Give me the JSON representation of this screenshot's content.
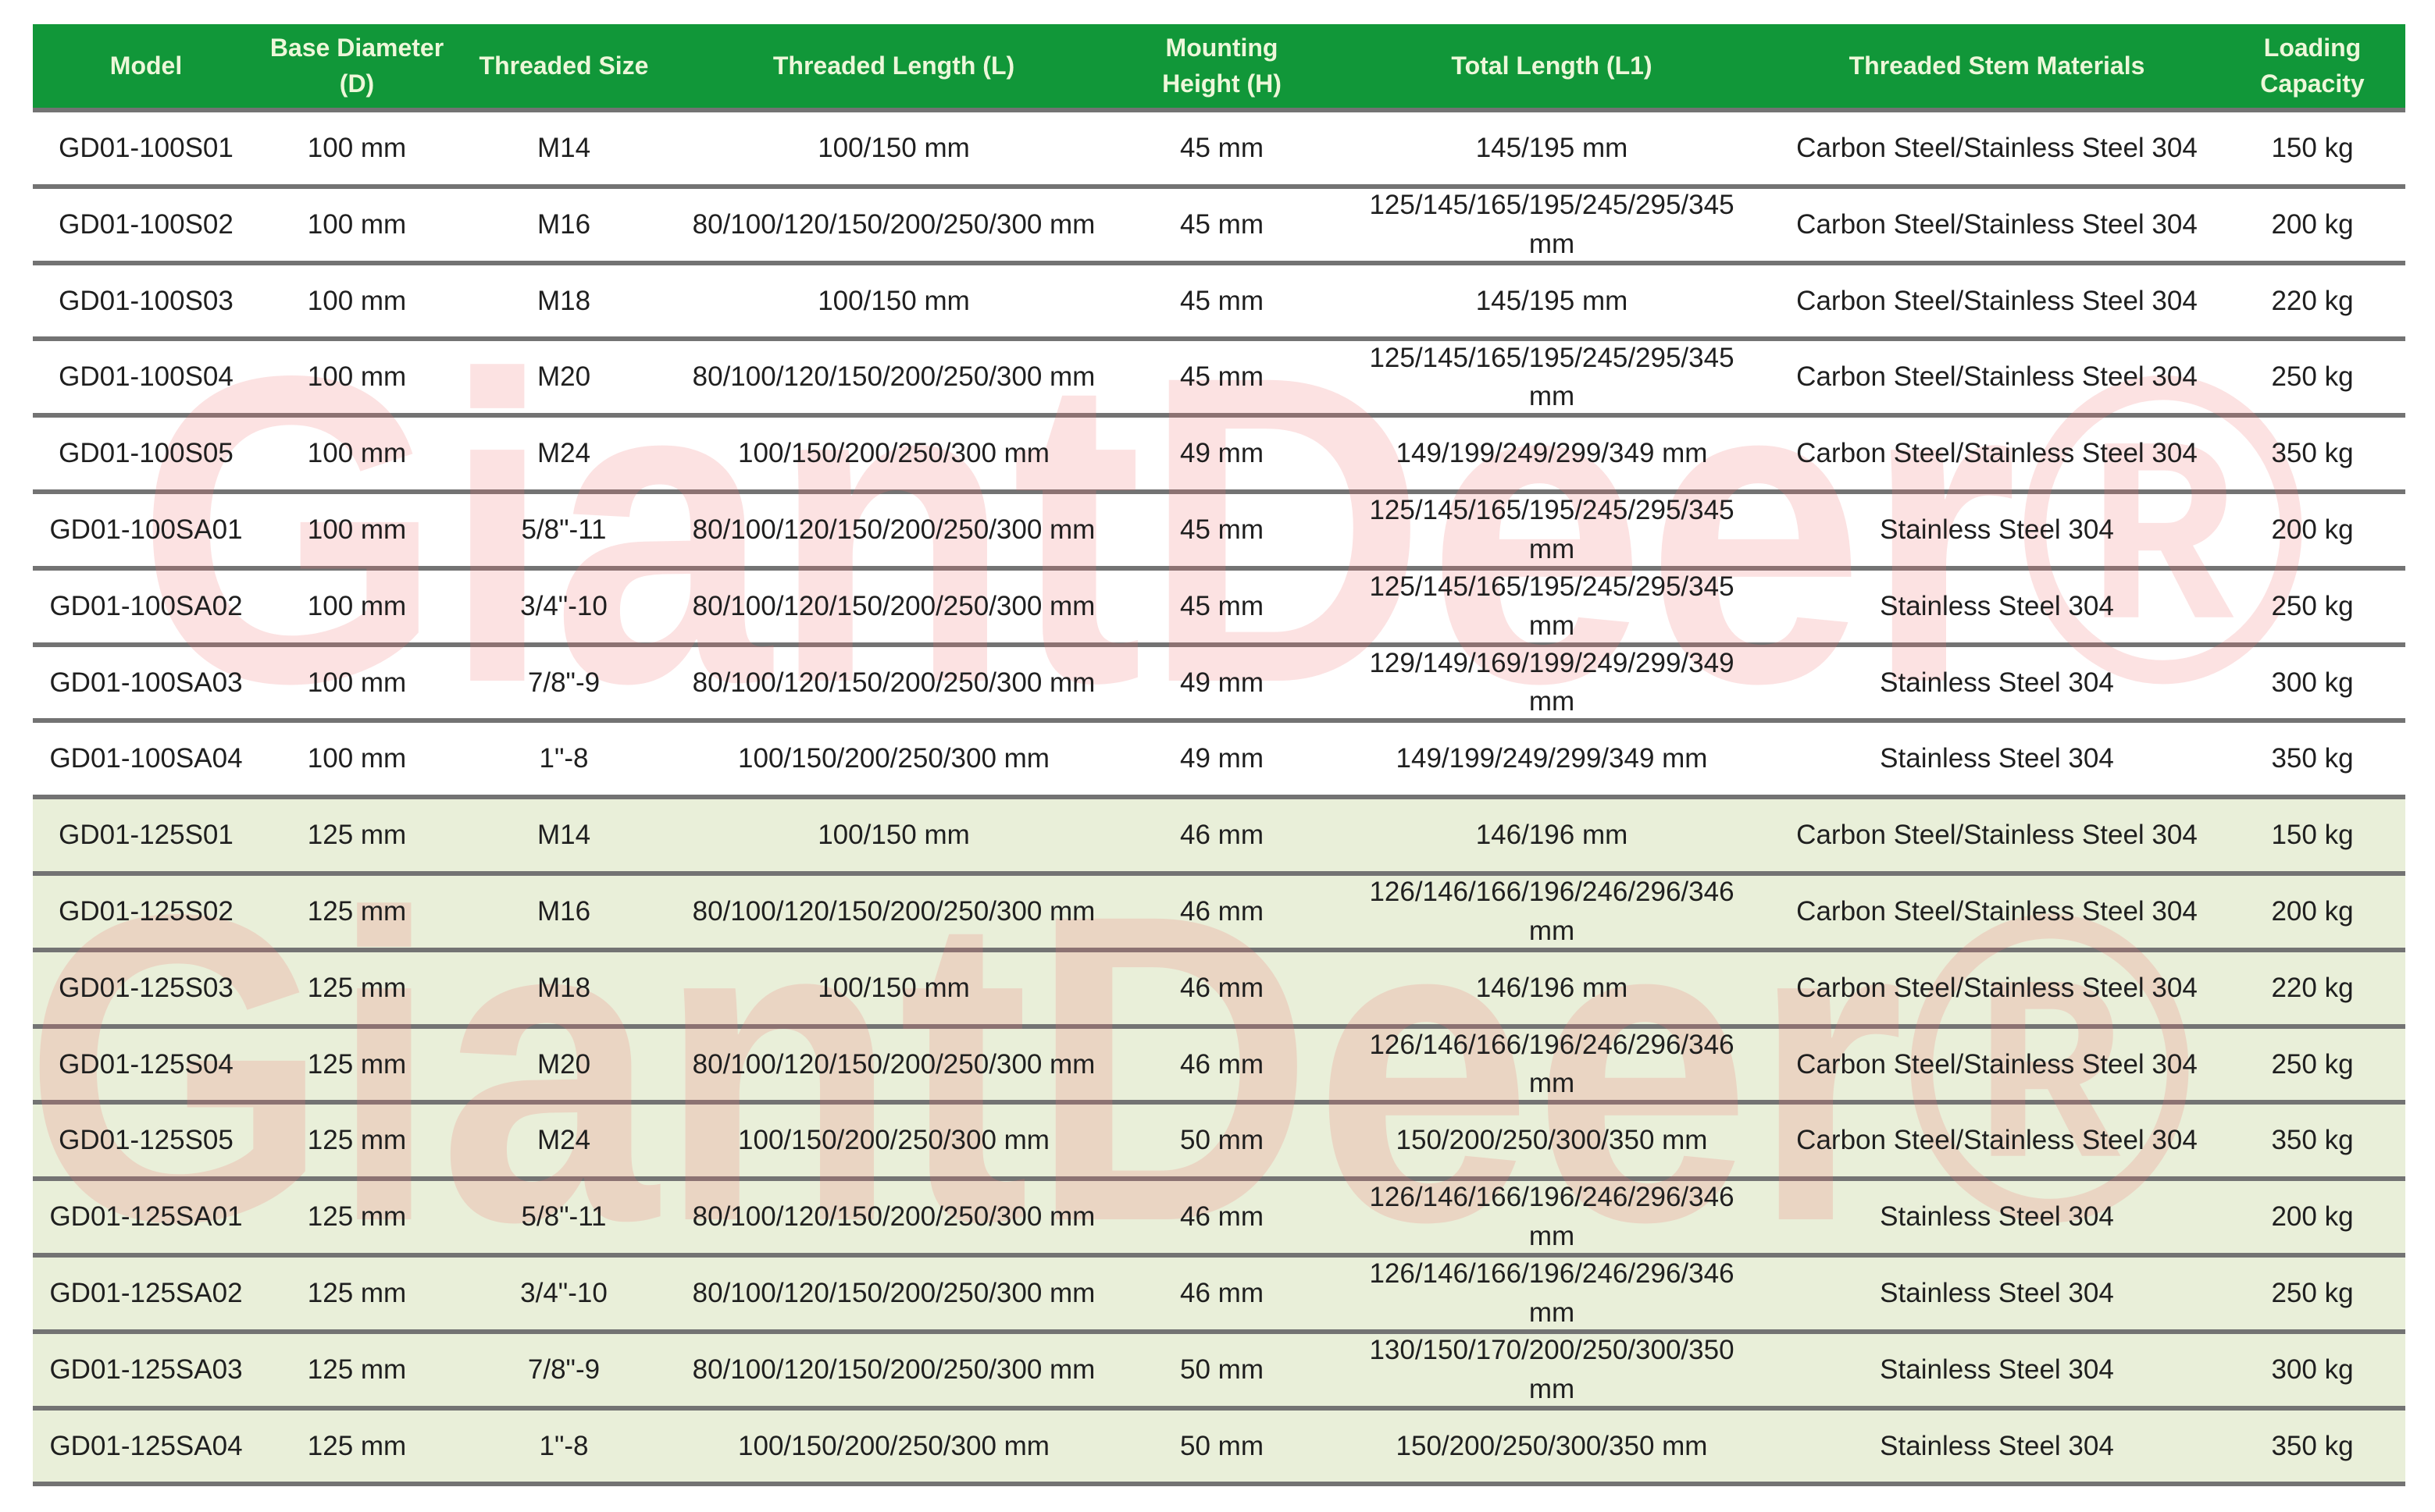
{
  "chart_data": {
    "type": "table",
    "columns": [
      "Model",
      "Base Diameter (D)",
      "Threaded Size",
      "Threaded Length (L)",
      "Mounting Height (H)",
      "Total Length (L1)",
      "Threaded Stem Materials",
      "Loading Capacity"
    ],
    "rows": [
      [
        "GD01-100S01",
        "100 mm",
        "M14",
        "100/150 mm",
        "45 mm",
        "145/195 mm",
        "Carbon Steel/Stainless Steel 304",
        "150 kg"
      ],
      [
        "GD01-100S02",
        "100 mm",
        "M16",
        "80/100/120/150/200/250/300 mm",
        "45 mm",
        "125/145/165/195/245/295/345 mm",
        "Carbon Steel/Stainless Steel 304",
        "200 kg"
      ],
      [
        "GD01-100S03",
        "100 mm",
        "M18",
        "100/150 mm",
        "45 mm",
        "145/195 mm",
        "Carbon Steel/Stainless Steel 304",
        "220 kg"
      ],
      [
        "GD01-100S04",
        "100 mm",
        "M20",
        "80/100/120/150/200/250/300 mm",
        "45 mm",
        "125/145/165/195/245/295/345 mm",
        "Carbon Steel/Stainless Steel 304",
        "250 kg"
      ],
      [
        "GD01-100S05",
        "100 mm",
        "M24",
        "100/150/200/250/300 mm",
        "49 mm",
        "149/199/249/299/349 mm",
        "Carbon Steel/Stainless Steel 304",
        "350 kg"
      ],
      [
        "GD01-100SA01",
        "100 mm",
        "5/8\"-11",
        "80/100/120/150/200/250/300 mm",
        "45 mm",
        "125/145/165/195/245/295/345 mm",
        "Stainless Steel 304",
        "200 kg"
      ],
      [
        "GD01-100SA02",
        "100 mm",
        "3/4\"-10",
        "80/100/120/150/200/250/300 mm",
        "45 mm",
        "125/145/165/195/245/295/345 mm",
        "Stainless Steel 304",
        "250 kg"
      ],
      [
        "GD01-100SA03",
        "100 mm",
        "7/8\"-9",
        "80/100/120/150/200/250/300 mm",
        "49 mm",
        "129/149/169/199/249/299/349 mm",
        "Stainless Steel 304",
        "300 kg"
      ],
      [
        "GD01-100SA04",
        "100 mm",
        "1\"-8",
        "100/150/200/250/300 mm",
        "49 mm",
        "149/199/249/299/349 mm",
        "Stainless Steel 304",
        "350 kg"
      ],
      [
        "GD01-125S01",
        "125 mm",
        "M14",
        "100/150 mm",
        "46 mm",
        "146/196 mm",
        "Carbon Steel/Stainless Steel 304",
        "150 kg"
      ],
      [
        "GD01-125S02",
        "125 mm",
        "M16",
        "80/100/120/150/200/250/300 mm",
        "46 mm",
        "126/146/166/196/246/296/346 mm",
        "Carbon Steel/Stainless Steel 304",
        "200 kg"
      ],
      [
        "GD01-125S03",
        "125 mm",
        "M18",
        "100/150 mm",
        "46 mm",
        "146/196 mm",
        "Carbon Steel/Stainless Steel 304",
        "220 kg"
      ],
      [
        "GD01-125S04",
        "125 mm",
        "M20",
        "80/100/120/150/200/250/300 mm",
        "46 mm",
        "126/146/166/196/246/296/346 mm",
        "Carbon Steel/Stainless Steel 304",
        "250 kg"
      ],
      [
        "GD01-125S05",
        "125 mm",
        "M24",
        "100/150/200/250/300 mm",
        "50 mm",
        "150/200/250/300/350 mm",
        "Carbon Steel/Stainless Steel 304",
        "350 kg"
      ],
      [
        "GD01-125SA01",
        "125 mm",
        "5/8\"-11",
        "80/100/120/150/200/250/300 mm",
        "46 mm",
        "126/146/166/196/246/296/346 mm",
        "Stainless Steel 304",
        "200 kg"
      ],
      [
        "GD01-125SA02",
        "125 mm",
        "3/4\"-10",
        "80/100/120/150/200/250/300 mm",
        "46 mm",
        "126/146/166/196/246/296/346 mm",
        "Stainless Steel 304",
        "250 kg"
      ],
      [
        "GD01-125SA03",
        "125 mm",
        "7/8\"-9",
        "80/100/120/150/200/250/300 mm",
        "50 mm",
        "130/150/170/200/250/300/350 mm",
        "Stainless Steel 304",
        "300 kg"
      ],
      [
        "GD01-125SA04",
        "125 mm",
        "1\"-8",
        "100/150/200/250/300 mm",
        "50 mm",
        "150/200/250/300/350 mm",
        "Stainless Steel 304",
        "350 kg"
      ]
    ],
    "highlight_start_row": 9,
    "layout_hints": "rows 1-9 (100 mm base) on white background, rows 10-18 (125 mm base) on light green background, gray horizontal dividers, no vertical gridlines"
  },
  "watermark": {
    "text": "GiantDeer®"
  },
  "colors": {
    "header_bg": "#119739",
    "header_text": "#edf7d9",
    "row_highlight_bg": "#e9efd9",
    "divider": "#737373",
    "body_text": "#1f1f1f",
    "watermark": "rgba(238,110,110,0.20)"
  }
}
